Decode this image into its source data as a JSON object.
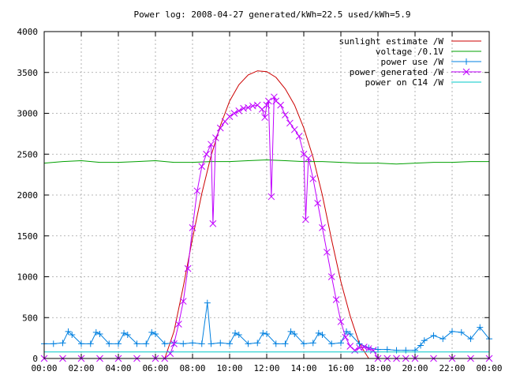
{
  "chart_data": {
    "type": "line",
    "title": "Power log: 2008-04-27 generated/kWh=22.5 used/kWh=5.9",
    "xlabel": "",
    "ylabel": "",
    "xlim": [
      0,
      24
    ],
    "ylim": [
      0,
      4000
    ],
    "grid": true,
    "legend_position": "top-right",
    "x_tick_labels": [
      "00:00",
      "02:00",
      "04:00",
      "06:00",
      "08:00",
      "10:00",
      "12:00",
      "14:00",
      "16:00",
      "18:00",
      "20:00",
      "22:00",
      "00:00"
    ],
    "y_ticks": [
      0,
      500,
      1000,
      1500,
      2000,
      2500,
      3000,
      3500,
      4000
    ],
    "series": [
      {
        "name": "sunlight estimate /W",
        "color": "#cc0000",
        "marker": "none",
        "x": [
          6.5,
          7,
          7.5,
          8,
          8.5,
          9,
          9.5,
          10,
          10.5,
          11,
          11.5,
          12,
          12.5,
          13,
          13.5,
          14,
          14.5,
          15,
          15.5,
          16,
          16.5,
          17,
          17.5
        ],
        "y": [
          0,
          330,
          880,
          1470,
          2020,
          2480,
          2850,
          3150,
          3350,
          3470,
          3520,
          3510,
          3440,
          3300,
          3100,
          2820,
          2460,
          2000,
          1450,
          940,
          520,
          180,
          0
        ]
      },
      {
        "name": "voltage /0.1V",
        "color": "#00a000",
        "marker": "none",
        "x": [
          0,
          1,
          2,
          3,
          4,
          5,
          6,
          7,
          8,
          9,
          10,
          11,
          12,
          13,
          14,
          15,
          16,
          17,
          18,
          19,
          20,
          21,
          22,
          23,
          24
        ],
        "y": [
          2390,
          2410,
          2420,
          2400,
          2400,
          2410,
          2420,
          2400,
          2400,
          2410,
          2410,
          2420,
          2430,
          2420,
          2410,
          2410,
          2400,
          2390,
          2390,
          2380,
          2390,
          2400,
          2400,
          2410,
          2410
        ]
      },
      {
        "name": "power use /W",
        "color": "#0080e0",
        "marker": "plus",
        "x": [
          0,
          0.5,
          1,
          1.3,
          1.5,
          2,
          2.5,
          2.8,
          3,
          3.5,
          4,
          4.3,
          4.5,
          5,
          5.5,
          5.8,
          6,
          6.5,
          7,
          7.5,
          8,
          8.5,
          8.8,
          9,
          9.5,
          10,
          10.3,
          10.5,
          11,
          11.5,
          11.8,
          12,
          12.5,
          13,
          13.3,
          13.5,
          14,
          14.5,
          14.8,
          15,
          15.5,
          16,
          16.3,
          16.5,
          17,
          17.5,
          18,
          18.5,
          19,
          19.5,
          20,
          20.3,
          20.5,
          21,
          21.5,
          22,
          22.5,
          23,
          23.5,
          24
        ],
        "y": [
          180,
          180,
          190,
          330,
          290,
          180,
          180,
          320,
          300,
          180,
          180,
          310,
          290,
          180,
          180,
          320,
          300,
          180,
          190,
          180,
          190,
          180,
          680,
          180,
          190,
          180,
          310,
          290,
          180,
          190,
          310,
          300,
          180,
          180,
          330,
          300,
          180,
          190,
          310,
          290,
          180,
          190,
          330,
          300,
          180,
          130,
          110,
          110,
          100,
          100,
          100,
          160,
          220,
          280,
          240,
          330,
          320,
          240,
          380,
          240
        ]
      },
      {
        "name": "power generated /W",
        "color": "#c000ff",
        "marker": "cross",
        "x": [
          0,
          1,
          2,
          3,
          4,
          5,
          6,
          6.5,
          6.8,
          7,
          7.25,
          7.5,
          7.75,
          8,
          8.25,
          8.5,
          8.75,
          9,
          9.1,
          9.25,
          9.5,
          9.75,
          10,
          10.25,
          10.5,
          10.75,
          11,
          11.25,
          11.5,
          11.75,
          11.9,
          12,
          12.1,
          12.25,
          12.4,
          12.5,
          12.75,
          13,
          13.25,
          13.5,
          13.75,
          14,
          14.1,
          14.25,
          14.5,
          14.75,
          15,
          15.25,
          15.5,
          15.75,
          16,
          16.25,
          16.5,
          16.75,
          17,
          17.25,
          17.5,
          17.75,
          18,
          18.5,
          19,
          19.5,
          20,
          21,
          22,
          23,
          24
        ],
        "y": [
          0,
          0,
          0,
          0,
          0,
          0,
          0,
          0,
          60,
          180,
          420,
          700,
          1100,
          1600,
          2050,
          2350,
          2500,
          2620,
          1650,
          2700,
          2820,
          2900,
          2960,
          3000,
          3030,
          3060,
          3070,
          3090,
          3100,
          3050,
          2950,
          3100,
          3150,
          1980,
          3200,
          3150,
          3100,
          2980,
          2880,
          2800,
          2720,
          2500,
          1700,
          2450,
          2200,
          1900,
          1600,
          1300,
          1000,
          720,
          450,
          260,
          150,
          100,
          130,
          140,
          120,
          100,
          0,
          0,
          0,
          0,
          0,
          0,
          0,
          0,
          0
        ]
      },
      {
        "name": "power on C14 /W",
        "color": "#00c8c8",
        "marker": "none",
        "x": [
          0,
          24
        ],
        "y": [
          80,
          80
        ]
      }
    ]
  }
}
